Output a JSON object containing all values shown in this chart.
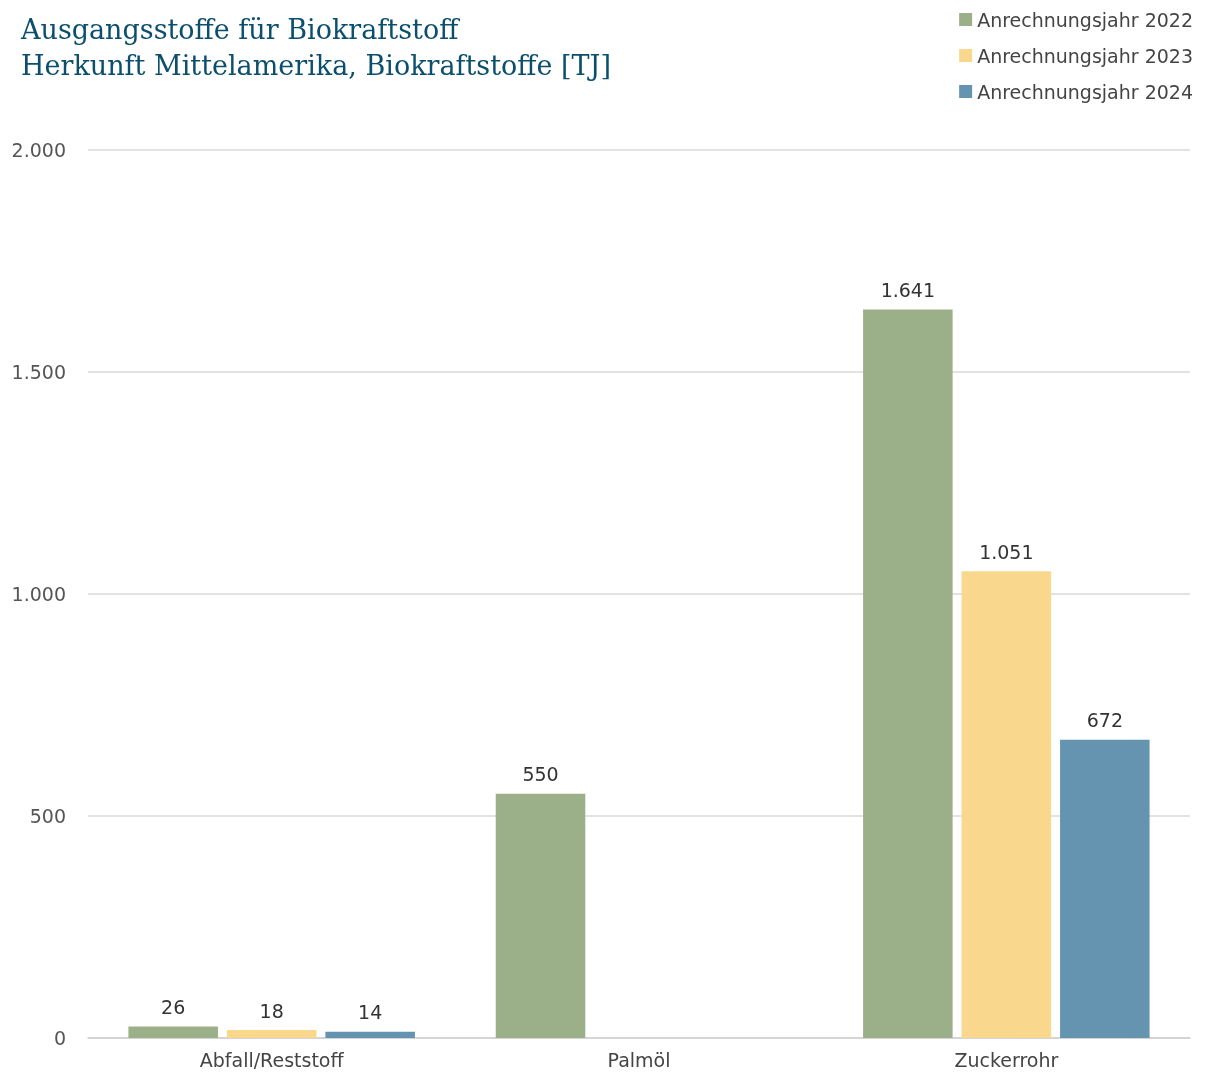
{
  "chart_data": {
    "type": "bar",
    "title": "Ausgangsstoffe für Biokraftstoff\nHerkunft Mittelamerika, Biokraftstoffe [TJ]",
    "categories": [
      "Abfall/Reststoff",
      "Palmöl",
      "Zuckerrohr"
    ],
    "series": [
      {
        "name": "Anrechnungsjahr 2022",
        "color": "#9bb088",
        "values": [
          26,
          550,
          1641
        ],
        "value_labels": [
          "26",
          "550",
          "1.641"
        ]
      },
      {
        "name": "Anrechnungsjahr 2023",
        "color": "#f9d78c",
        "values": [
          18,
          null,
          1051
        ],
        "value_labels": [
          "18",
          null,
          "1.051"
        ]
      },
      {
        "name": "Anrechnungsjahr 2024",
        "color": "#6594b1",
        "values": [
          14,
          null,
          672
        ],
        "value_labels": [
          "14",
          null,
          "672"
        ]
      }
    ],
    "ylim": [
      0,
      2000
    ],
    "yticks": [
      0,
      500,
      {
        "value": 1000,
        "label": "1.000"
      },
      {
        "value": 1500,
        "label": "1.500"
      },
      {
        "value": 2000,
        "label": "2.000"
      }
    ],
    "grid": "y",
    "legend": "top right"
  }
}
